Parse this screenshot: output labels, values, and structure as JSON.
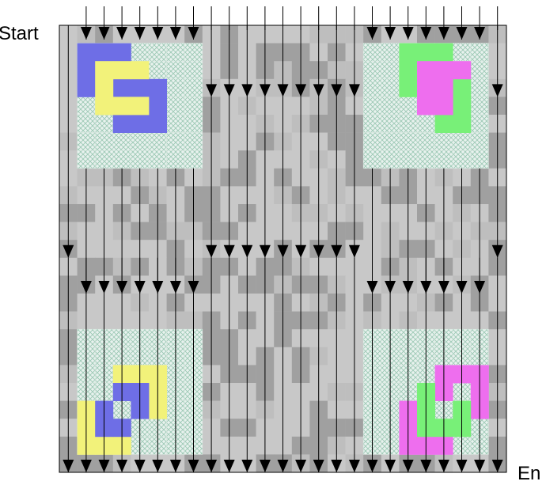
{
  "labels": {
    "start": "Start",
    "end": "En"
  },
  "grid": {
    "cols": 25,
    "rows": 25,
    "shades": [
      "#c8c8c8",
      "#a0a0a0",
      "#bebebe"
    ],
    "hatch_color": "#9cc8b4",
    "hatch_bg": "#e8f2ee"
  },
  "panels": [
    {
      "id": "top-left",
      "col": 1,
      "row": 1,
      "size": 7,
      "blocks": [
        {
          "color": "#6e6ee6",
          "cells": [
            [
              0,
              0
            ],
            [
              1,
              0
            ],
            [
              2,
              0
            ],
            [
              0,
              1
            ],
            [
              0,
              2
            ],
            [
              2,
              2
            ],
            [
              3,
              2
            ],
            [
              4,
              2
            ],
            [
              4,
              3
            ],
            [
              4,
              4
            ],
            [
              2,
              4
            ],
            [
              3,
              4
            ]
          ]
        },
        {
          "color": "#f2f27a",
          "cells": [
            [
              1,
              1
            ],
            [
              2,
              1
            ],
            [
              3,
              1
            ],
            [
              1,
              2
            ],
            [
              1,
              3
            ],
            [
              2,
              3
            ],
            [
              3,
              3
            ]
          ]
        }
      ]
    },
    {
      "id": "top-right",
      "col": 17,
      "row": 1,
      "size": 7,
      "blocks": [
        {
          "color": "#78f078",
          "cells": [
            [
              2,
              0
            ],
            [
              3,
              0
            ],
            [
              4,
              0
            ],
            [
              2,
              1
            ],
            [
              2,
              2
            ],
            [
              5,
              2
            ],
            [
              4,
              4
            ],
            [
              5,
              4
            ],
            [
              5,
              3
            ]
          ]
        },
        {
          "color": "#ee6eee",
          "cells": [
            [
              3,
              1
            ],
            [
              4,
              1
            ],
            [
              5,
              1
            ],
            [
              3,
              2
            ],
            [
              4,
              3
            ],
            [
              4,
              2
            ],
            [
              3,
              3
            ]
          ]
        }
      ]
    },
    {
      "id": "bottom-left",
      "col": 1,
      "row": 17,
      "size": 7,
      "blocks": [
        {
          "color": "#f2f27a",
          "cells": [
            [
              2,
              2
            ],
            [
              3,
              2
            ],
            [
              4,
              2
            ],
            [
              4,
              3
            ],
            [
              4,
              4
            ],
            [
              0,
              4
            ],
            [
              0,
              5
            ],
            [
              0,
              6
            ],
            [
              1,
              6
            ],
            [
              2,
              6
            ]
          ]
        },
        {
          "color": "#6e6ee6",
          "cells": [
            [
              2,
              3
            ],
            [
              3,
              3
            ],
            [
              1,
              4
            ],
            [
              3,
              4
            ],
            [
              1,
              5
            ],
            [
              2,
              5
            ]
          ]
        }
      ]
    },
    {
      "id": "bottom-right",
      "col": 17,
      "row": 17,
      "size": 7,
      "blocks": [
        {
          "color": "#ee6eee",
          "cells": [
            [
              4,
              2
            ],
            [
              5,
              2
            ],
            [
              6,
              2
            ],
            [
              4,
              3
            ],
            [
              6,
              3
            ],
            [
              6,
              4
            ],
            [
              2,
              4
            ],
            [
              2,
              5
            ],
            [
              2,
              6
            ],
            [
              3,
              6
            ],
            [
              4,
              6
            ]
          ]
        },
        {
          "color": "#78f078",
          "cells": [
            [
              3,
              3
            ],
            [
              3,
              4
            ],
            [
              5,
              4
            ],
            [
              5,
              5
            ],
            [
              3,
              5
            ],
            [
              4,
              5
            ]
          ]
        }
      ]
    }
  ]
}
